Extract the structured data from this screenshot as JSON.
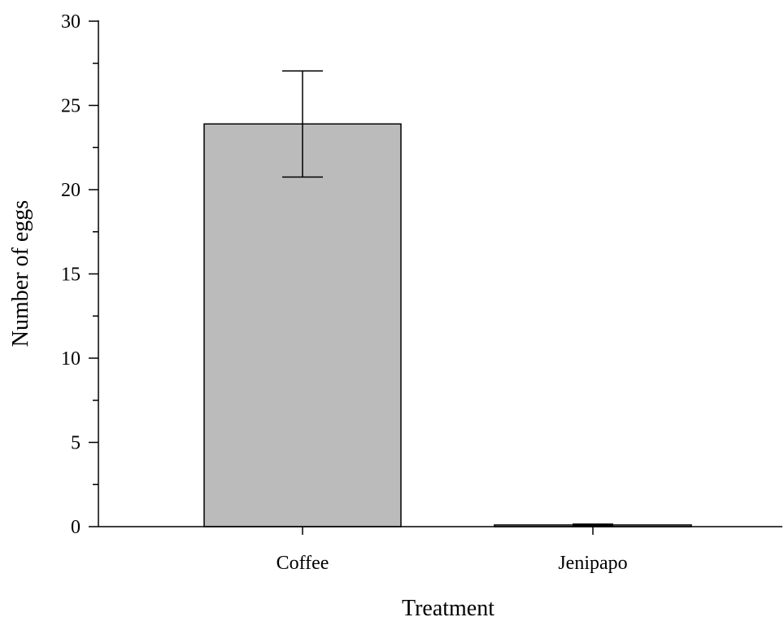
{
  "chart_data": {
    "type": "bar",
    "categories": [
      "Coffee",
      "Jenipapo"
    ],
    "values": [
      23.9,
      0.1
    ],
    "error": [
      3.15,
      0.05
    ],
    "xlabel": "Treatment",
    "ylabel": "Number of eggs",
    "ylim": [
      0,
      30
    ],
    "yticks": [
      0,
      5,
      10,
      15,
      20,
      25,
      30
    ],
    "yminor_step": 2.5,
    "grid": false,
    "legend": "none",
    "bar_color": "#bbbbbb",
    "edge_color": "#000000"
  }
}
